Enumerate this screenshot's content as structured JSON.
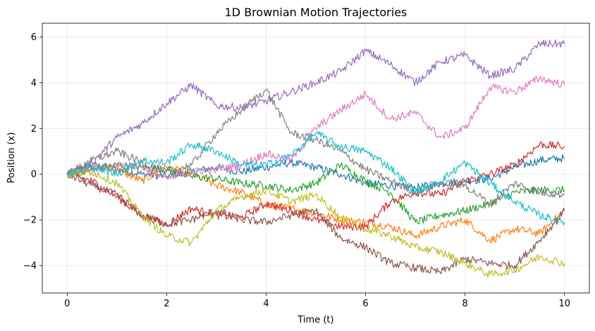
{
  "chart_data": {
    "type": "line",
    "title": "1D Brownian Motion Trajectories",
    "xlabel": "Time (t)",
    "ylabel": "Position (x)",
    "xlim": [
      -0.5,
      10.5
    ],
    "ylim": [
      -5.2,
      6.6
    ],
    "xticks": [
      0,
      2,
      4,
      6,
      8,
      10
    ],
    "yticks": [
      -4,
      -2,
      0,
      2,
      4,
      6
    ],
    "grid": true,
    "x": [
      0,
      0.5,
      1,
      1.5,
      2,
      2.5,
      3,
      3.5,
      4,
      4.5,
      5,
      5.5,
      6,
      6.5,
      7,
      7.5,
      8,
      8.5,
      9,
      9.5,
      10
    ],
    "series": [
      {
        "color": "#1f77b4",
        "values": [
          0,
          0.4,
          0.2,
          0.0,
          -0.1,
          0.1,
          0.3,
          0.1,
          0.3,
          0.5,
          0.3,
          0.0,
          -0.4,
          -0.5,
          -0.6,
          -0.4,
          -0.3,
          -0.2,
          0.3,
          0.6,
          0.7
        ]
      },
      {
        "color": "#ff7f0e",
        "values": [
          0,
          0.3,
          0.2,
          -0.3,
          0.3,
          0.0,
          -0.5,
          -0.8,
          -1.3,
          -1.5,
          -1.7,
          -2.0,
          -2.1,
          -2.3,
          -2.7,
          -2.3,
          -2.0,
          -2.9,
          -2.4,
          -2.6,
          -1.6
        ]
      },
      {
        "color": "#2ca02c",
        "values": [
          0,
          0.2,
          0.4,
          0.3,
          0.2,
          -0.1,
          -0.2,
          -0.4,
          -0.5,
          -0.7,
          -0.4,
          0.4,
          -0.3,
          -0.8,
          -2.1,
          -1.8,
          -1.6,
          -1.3,
          -0.8,
          -0.7,
          -0.7
        ]
      },
      {
        "color": "#d62728",
        "values": [
          0,
          -0.3,
          -1.0,
          -1.8,
          -2.2,
          -1.5,
          -1.8,
          -1.9,
          -1.3,
          -1.6,
          -2.0,
          -2.3,
          -2.3,
          -1.2,
          -0.8,
          -0.9,
          -0.3,
          0.0,
          0.4,
          1.3,
          1.2
        ]
      },
      {
        "color": "#9467bd",
        "values": [
          0,
          0.5,
          1.6,
          2.2,
          3.1,
          3.9,
          3.0,
          2.9,
          3.2,
          3.6,
          4.0,
          4.5,
          5.4,
          4.8,
          4.0,
          4.9,
          5.2,
          4.3,
          4.6,
          5.7,
          5.7
        ]
      },
      {
        "color": "#8c564b",
        "values": [
          0,
          -0.5,
          -0.9,
          -1.8,
          -2.2,
          -2.0,
          -1.6,
          -2.0,
          -2.1,
          -1.8,
          -1.6,
          -2.8,
          -3.2,
          -3.9,
          -4.1,
          -4.3,
          -3.7,
          -3.9,
          -4.0,
          -2.9,
          -1.6
        ]
      },
      {
        "color": "#e377c2",
        "values": [
          0,
          0.2,
          0.4,
          0.3,
          -0.2,
          0.1,
          0.2,
          0.4,
          0.9,
          0.6,
          2.0,
          2.8,
          3.5,
          2.4,
          2.7,
          1.6,
          2.0,
          3.8,
          3.6,
          4.2,
          3.9
        ]
      },
      {
        "color": "#7f7f7f",
        "values": [
          0,
          0.6,
          1.0,
          0.5,
          0.1,
          0.4,
          1.8,
          2.8,
          3.7,
          1.8,
          1.5,
          1.0,
          0.2,
          -0.3,
          -0.8,
          -0.4,
          -0.5,
          -1.3,
          -0.4,
          -0.8,
          -0.9
        ]
      },
      {
        "color": "#bcbd22",
        "values": [
          0,
          0.1,
          -0.4,
          -1.8,
          -2.7,
          -3.0,
          -1.6,
          -1.0,
          -0.7,
          -1.2,
          -0.9,
          -1.9,
          -2.4,
          -2.7,
          -3.2,
          -3.4,
          -3.9,
          -4.4,
          -4.2,
          -3.6,
          -3.9
        ]
      },
      {
        "color": "#17becf",
        "values": [
          0,
          0.3,
          0.0,
          0.6,
          0.5,
          1.3,
          1.0,
          0.4,
          0.4,
          0.8,
          1.8,
          1.2,
          1.0,
          0.3,
          -0.8,
          -0.3,
          0.5,
          -0.4,
          -1.2,
          -1.8,
          -2.1
        ]
      }
    ]
  }
}
